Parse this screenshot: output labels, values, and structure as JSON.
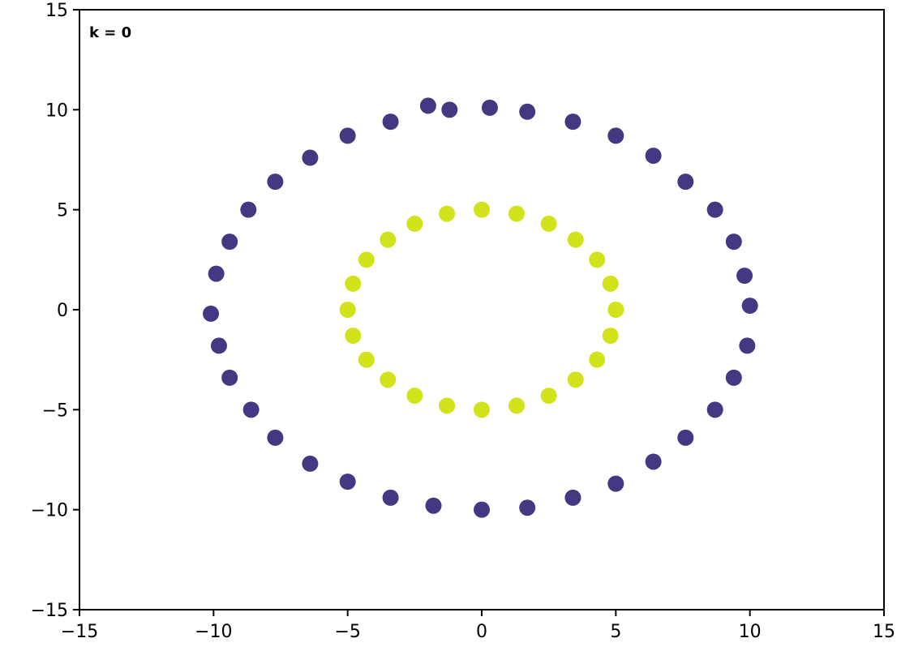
{
  "chart_data": {
    "type": "scatter",
    "annotation": "k =  0",
    "annotation_color": "#ff0000",
    "xlim": [
      -15,
      15
    ],
    "ylim": [
      -15,
      15
    ],
    "xticks": [
      {
        "value": -15,
        "label": "−15"
      },
      {
        "value": -10,
        "label": "−10"
      },
      {
        "value": -5,
        "label": "−5"
      },
      0,
      5,
      10,
      15
    ],
    "yticks": [
      {
        "value": -15,
        "label": "−15"
      },
      {
        "value": -10,
        "label": "−10"
      },
      {
        "value": -5,
        "label": "−5"
      },
      0,
      5,
      10,
      15
    ],
    "series": [
      {
        "color": "#453781",
        "x": [
          10.0,
          9.8,
          9.4,
          8.7,
          7.6,
          6.4,
          5.0,
          3.4,
          1.7,
          0.3,
          -1.2,
          -2.0,
          -3.4,
          -5.0,
          -6.4,
          -7.7,
          -8.7,
          -9.4,
          -9.9,
          -10.1,
          -9.8,
          -9.4,
          -8.6,
          -7.7,
          -6.4,
          -5.0,
          -3.4,
          -1.8,
          0.0,
          1.7,
          3.4,
          5.0,
          6.4,
          7.6,
          8.7,
          9.4,
          9.9
        ],
        "y": [
          0.2,
          1.7,
          3.4,
          5.0,
          6.4,
          7.7,
          8.7,
          9.4,
          9.9,
          10.1,
          10.0,
          10.2,
          9.4,
          8.7,
          7.6,
          6.4,
          5.0,
          3.4,
          1.8,
          -0.2,
          -1.8,
          -3.4,
          -5.0,
          -6.4,
          -7.7,
          -8.6,
          -9.4,
          -9.8,
          -10.0,
          -9.9,
          -9.4,
          -8.7,
          -7.6,
          -6.4,
          -5.0,
          -3.4,
          -1.8
        ]
      },
      {
        "color": "#d2e21b",
        "x": [
          5.0,
          4.8,
          4.3,
          3.5,
          2.5,
          1.3,
          0.0,
          -1.3,
          -2.5,
          -3.5,
          -4.3,
          -4.8,
          -5.0,
          -4.8,
          -4.3,
          -3.5,
          -2.5,
          -1.3,
          0.0,
          1.3,
          2.5,
          3.5,
          4.3,
          4.8
        ],
        "y": [
          0.0,
          1.3,
          2.5,
          3.5,
          4.3,
          4.8,
          5.0,
          4.8,
          4.3,
          3.5,
          2.5,
          1.3,
          0.0,
          -1.3,
          -2.5,
          -3.5,
          -4.3,
          -4.8,
          -5.0,
          -4.8,
          -4.3,
          -3.5,
          -2.5,
          -1.3
        ]
      }
    ]
  }
}
